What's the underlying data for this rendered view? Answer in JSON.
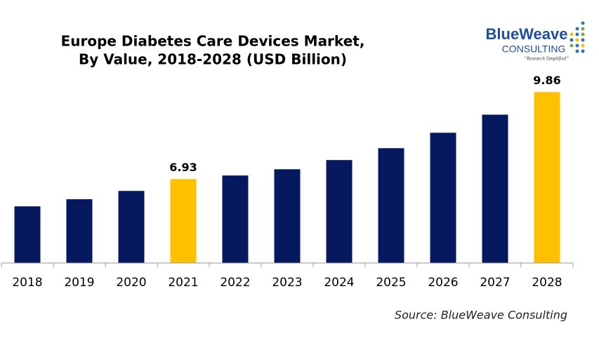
{
  "chart_data": {
    "type": "bar",
    "title": [
      "Europe Diabetes Care Devices Market,",
      "By Value, 2018-2028 (USD Billion)"
    ],
    "categories": [
      "2018",
      "2019",
      "2020",
      "2021",
      "2022",
      "2023",
      "2024",
      "2025",
      "2026",
      "2027",
      "2028"
    ],
    "values": [
      6.01,
      6.25,
      6.53,
      6.93,
      7.05,
      7.26,
      7.57,
      7.97,
      8.49,
      9.1,
      9.86
    ],
    "value_labels": [
      null,
      null,
      null,
      "6.93",
      null,
      null,
      null,
      null,
      null,
      null,
      "9.86"
    ],
    "colors": [
      "#06195e",
      "#06195e",
      "#06195e",
      "#ffc000",
      "#06195e",
      "#06195e",
      "#06195e",
      "#06195e",
      "#06195e",
      "#06195e",
      "#ffc000"
    ],
    "ylim": [
      4.1,
      10.6
    ],
    "source": "Source: BlueWeave Consulting"
  },
  "logo": {
    "name": "BlueWeave",
    "sub": "CONSULTING",
    "tagline": "“Research Simplified”"
  }
}
